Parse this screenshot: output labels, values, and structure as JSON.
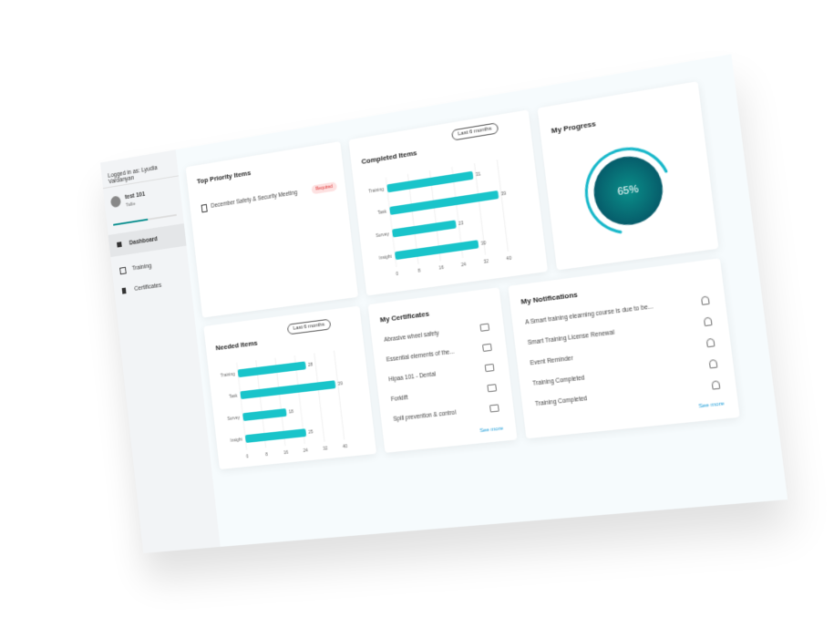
{
  "sidebar": {
    "logged_in": "Logged in as: Lyudia Vardanyan",
    "user_name": "test 101",
    "user_role": "Tallie",
    "nav": [
      "Dashboard",
      "Training",
      "Certificates"
    ]
  },
  "top_priority": {
    "title": "Top Priority Items",
    "items": [
      {
        "label": "December Safety & Security Meeting",
        "badge": "Required"
      }
    ]
  },
  "completed_items": {
    "type": "bar",
    "title": "Completed Items",
    "filter": "Last 6 months",
    "color": "#19c4ca",
    "categories": [
      "Training",
      "Task",
      "Survey",
      "Insight"
    ],
    "values": [
      31,
      39,
      23,
      30
    ],
    "xlim": [
      0,
      48
    ],
    "xticks": [
      0,
      8,
      16,
      24,
      32,
      40
    ],
    "grid": true
  },
  "progress": {
    "title": "My Progress",
    "value": 65,
    "value_label": "65%",
    "color": "#16b7c9"
  },
  "needed_items": {
    "type": "bar",
    "title": "Needed Items",
    "filter": "Last 6 months",
    "color": "#19c4ca",
    "categories": [
      "Training",
      "Task",
      "Survey",
      "Insight"
    ],
    "values": [
      28,
      39,
      18,
      25
    ],
    "xlim": [
      0,
      48
    ],
    "xticks": [
      0,
      8,
      16,
      24,
      32,
      40
    ],
    "grid": true
  },
  "certificates": {
    "title": "My Certificates",
    "items": [
      "Abrasive wheel safety",
      "Essential elements of the...",
      "Hipaa 101 - Dental",
      "Forklift",
      "Spill prevention & control"
    ],
    "see_more": "See more"
  },
  "notifications": {
    "title": "My Notifications",
    "items": [
      "A Smart training elearning course is due to be...",
      "Smart Training License Renewal",
      "Event Reminder",
      "Training Completed",
      "Training Completed"
    ],
    "see_more": "See more"
  }
}
